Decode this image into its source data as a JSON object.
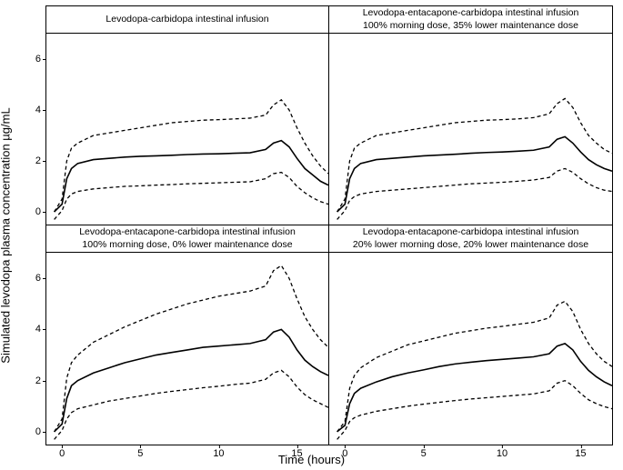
{
  "axes": {
    "y_label": "Simulated levodopa plasma concentration µg/mL",
    "x_label": "Time (hours)",
    "xlim": [
      -1,
      17
    ],
    "ylim": [
      -0.5,
      7
    ],
    "xticks": [
      0,
      5,
      10,
      15
    ],
    "yticks": [
      0,
      2,
      4,
      6
    ],
    "tick_fontsize": 11,
    "label_fontsize": 13,
    "title_fontsize": 10.5
  },
  "styling": {
    "background_color": "#ffffff",
    "line_color": "#000000",
    "solid_width": 1.6,
    "dashed_width": 1.3,
    "dash_pattern": "4 3",
    "panel_border_color": "#000000"
  },
  "panels": [
    {
      "id": "tl",
      "title": "Levodopa-carbidopa intestinal infusion",
      "series": {
        "upper": {
          "x": [
            -0.5,
            0,
            0.3,
            0.6,
            1,
            2,
            3,
            4,
            5,
            6,
            7,
            8,
            9,
            10,
            11,
            12,
            13,
            13.5,
            14,
            14.5,
            15,
            15.5,
            16,
            16.5,
            17
          ],
          "y": [
            0.0,
            0.5,
            2.0,
            2.5,
            2.7,
            3.0,
            3.1,
            3.2,
            3.3,
            3.4,
            3.5,
            3.55,
            3.6,
            3.62,
            3.65,
            3.68,
            3.8,
            4.2,
            4.4,
            4.0,
            3.3,
            2.7,
            2.2,
            1.8,
            1.5
          ]
        },
        "median": {
          "x": [
            -0.5,
            0,
            0.3,
            0.6,
            1,
            2,
            3,
            4,
            5,
            6,
            7,
            8,
            9,
            10,
            11,
            12,
            13,
            13.5,
            14,
            14.5,
            15,
            15.5,
            16,
            16.5,
            17
          ],
          "y": [
            0.0,
            0.3,
            1.3,
            1.7,
            1.9,
            2.05,
            2.1,
            2.15,
            2.18,
            2.2,
            2.22,
            2.25,
            2.27,
            2.28,
            2.3,
            2.32,
            2.45,
            2.7,
            2.8,
            2.55,
            2.1,
            1.7,
            1.45,
            1.2,
            1.05
          ]
        },
        "lower": {
          "x": [
            -0.5,
            0,
            0.3,
            0.6,
            1,
            2,
            3,
            4,
            5,
            6,
            7,
            8,
            9,
            10,
            11,
            12,
            13,
            13.5,
            14,
            14.5,
            15,
            15.5,
            16,
            16.5,
            17
          ],
          "y": [
            -0.3,
            0.05,
            0.5,
            0.7,
            0.8,
            0.9,
            0.95,
            1.0,
            1.02,
            1.05,
            1.07,
            1.1,
            1.12,
            1.14,
            1.16,
            1.18,
            1.3,
            1.5,
            1.55,
            1.35,
            1.0,
            0.75,
            0.55,
            0.4,
            0.3
          ]
        }
      }
    },
    {
      "id": "tr",
      "title": "Levodopa-entacapone-carbidopa intestinal infusion\n100% morning dose, 35% lower maintenance dose",
      "series": {
        "upper": {
          "x": [
            -0.5,
            0,
            0.3,
            0.6,
            1,
            2,
            3,
            4,
            5,
            6,
            7,
            8,
            9,
            10,
            11,
            12,
            13,
            13.5,
            14,
            14.5,
            15,
            15.5,
            16,
            16.5,
            17
          ],
          "y": [
            0.0,
            0.5,
            2.0,
            2.5,
            2.7,
            3.0,
            3.1,
            3.2,
            3.3,
            3.4,
            3.5,
            3.55,
            3.6,
            3.62,
            3.65,
            3.7,
            3.85,
            4.25,
            4.45,
            4.1,
            3.5,
            3.0,
            2.7,
            2.45,
            2.3
          ]
        },
        "median": {
          "x": [
            -0.5,
            0,
            0.3,
            0.6,
            1,
            2,
            3,
            4,
            5,
            6,
            7,
            8,
            9,
            10,
            11,
            12,
            13,
            13.5,
            14,
            14.5,
            15,
            15.5,
            16,
            16.5,
            17
          ],
          "y": [
            0.0,
            0.3,
            1.3,
            1.7,
            1.9,
            2.05,
            2.1,
            2.15,
            2.2,
            2.23,
            2.26,
            2.3,
            2.33,
            2.35,
            2.38,
            2.42,
            2.55,
            2.85,
            2.95,
            2.7,
            2.35,
            2.05,
            1.85,
            1.7,
            1.6
          ]
        },
        "lower": {
          "x": [
            -0.5,
            0,
            0.3,
            0.6,
            1,
            2,
            3,
            4,
            5,
            6,
            7,
            8,
            9,
            10,
            11,
            12,
            13,
            13.5,
            14,
            14.5,
            15,
            15.5,
            16,
            16.5,
            17
          ],
          "y": [
            -0.3,
            0.05,
            0.45,
            0.6,
            0.7,
            0.8,
            0.85,
            0.9,
            0.95,
            1.0,
            1.05,
            1.1,
            1.13,
            1.16,
            1.2,
            1.25,
            1.35,
            1.6,
            1.7,
            1.55,
            1.3,
            1.1,
            0.95,
            0.85,
            0.8
          ]
        }
      }
    },
    {
      "id": "bl",
      "title": "Levodopa-entacapone-carbidopa intestinal infusion\n100% morning dose, 0% lower maintenance dose",
      "series": {
        "upper": {
          "x": [
            -0.5,
            0,
            0.3,
            0.6,
            1,
            2,
            3,
            4,
            5,
            6,
            7,
            8,
            9,
            10,
            11,
            12,
            13,
            13.5,
            14,
            14.5,
            15,
            15.5,
            16,
            16.5,
            17
          ],
          "y": [
            0.0,
            0.5,
            2.1,
            2.7,
            3.0,
            3.5,
            3.8,
            4.1,
            4.35,
            4.6,
            4.8,
            5.0,
            5.15,
            5.3,
            5.4,
            5.5,
            5.7,
            6.3,
            6.5,
            6.0,
            5.2,
            4.5,
            4.0,
            3.6,
            3.3
          ]
        },
        "median": {
          "x": [
            -0.5,
            0,
            0.3,
            0.6,
            1,
            2,
            3,
            4,
            5,
            6,
            7,
            8,
            9,
            10,
            11,
            12,
            13,
            13.5,
            14,
            14.5,
            15,
            15.5,
            16,
            16.5,
            17
          ],
          "y": [
            0.0,
            0.3,
            1.3,
            1.8,
            2.0,
            2.3,
            2.5,
            2.7,
            2.85,
            3.0,
            3.1,
            3.2,
            3.3,
            3.35,
            3.4,
            3.45,
            3.6,
            3.9,
            4.0,
            3.7,
            3.2,
            2.8,
            2.55,
            2.35,
            2.2
          ]
        },
        "lower": {
          "x": [
            -0.5,
            0,
            0.3,
            0.6,
            1,
            2,
            3,
            4,
            5,
            6,
            7,
            8,
            9,
            10,
            11,
            12,
            13,
            13.5,
            14,
            14.5,
            15,
            15.5,
            16,
            16.5,
            17
          ],
          "y": [
            -0.3,
            0.05,
            0.5,
            0.75,
            0.9,
            1.05,
            1.2,
            1.3,
            1.4,
            1.5,
            1.58,
            1.65,
            1.72,
            1.78,
            1.85,
            1.9,
            2.05,
            2.3,
            2.4,
            2.15,
            1.75,
            1.45,
            1.25,
            1.1,
            0.95
          ]
        }
      }
    },
    {
      "id": "br",
      "title": "Levodopa-entacapone-carbidopa intestinal infusion\n20% lower morning dose, 20% lower maintenance dose",
      "series": {
        "upper": {
          "x": [
            -0.5,
            0,
            0.3,
            0.6,
            1,
            2,
            3,
            4,
            5,
            6,
            7,
            8,
            9,
            10,
            11,
            12,
            13,
            13.5,
            14,
            14.5,
            15,
            15.5,
            16,
            16.5,
            17
          ],
          "y": [
            0.0,
            0.4,
            1.7,
            2.2,
            2.5,
            2.9,
            3.15,
            3.4,
            3.55,
            3.7,
            3.85,
            3.95,
            4.05,
            4.12,
            4.2,
            4.28,
            4.45,
            4.95,
            5.1,
            4.7,
            4.0,
            3.45,
            3.05,
            2.75,
            2.55
          ]
        },
        "median": {
          "x": [
            -0.5,
            0,
            0.3,
            0.6,
            1,
            2,
            3,
            4,
            5,
            6,
            7,
            8,
            9,
            10,
            11,
            12,
            13,
            13.5,
            14,
            14.5,
            15,
            15.5,
            16,
            16.5,
            17
          ],
          "y": [
            0.0,
            0.25,
            1.1,
            1.5,
            1.7,
            1.95,
            2.15,
            2.3,
            2.42,
            2.55,
            2.65,
            2.72,
            2.78,
            2.83,
            2.88,
            2.93,
            3.05,
            3.35,
            3.45,
            3.2,
            2.75,
            2.4,
            2.15,
            1.95,
            1.8
          ]
        },
        "lower": {
          "x": [
            -0.5,
            0,
            0.3,
            0.6,
            1,
            2,
            3,
            4,
            5,
            6,
            7,
            8,
            9,
            10,
            11,
            12,
            13,
            13.5,
            14,
            14.5,
            15,
            15.5,
            16,
            16.5,
            17
          ],
          "y": [
            -0.3,
            0.05,
            0.4,
            0.55,
            0.65,
            0.8,
            0.9,
            1.0,
            1.08,
            1.15,
            1.22,
            1.28,
            1.33,
            1.38,
            1.43,
            1.48,
            1.6,
            1.9,
            2.0,
            1.8,
            1.5,
            1.25,
            1.1,
            0.98,
            0.9
          ]
        }
      }
    }
  ]
}
